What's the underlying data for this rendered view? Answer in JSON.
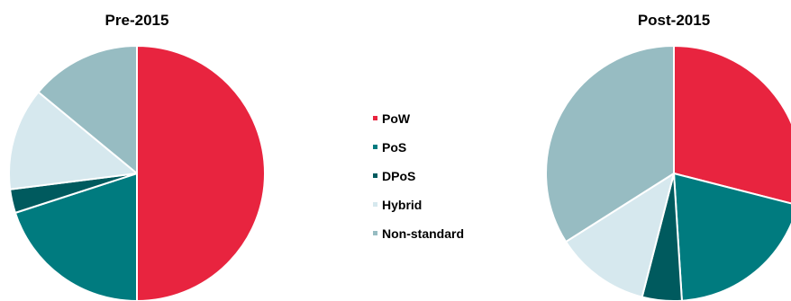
{
  "chart_data": [
    {
      "type": "pie",
      "title": "Pre-2015",
      "categories": [
        "PoW",
        "PoS",
        "DPoS",
        "Hybrid",
        "Non-standard"
      ],
      "values": [
        50,
        20,
        3,
        13,
        14
      ]
    },
    {
      "type": "pie",
      "title": "Post-2015",
      "categories": [
        "PoW",
        "PoS",
        "DPoS",
        "Hybrid",
        "Non-standard"
      ],
      "values": [
        29,
        20,
        5,
        12,
        34
      ]
    }
  ],
  "legend": {
    "placement": "center",
    "items": [
      {
        "label": "PoW",
        "color": "#e8243f"
      },
      {
        "label": "PoS",
        "color": "#007b7f"
      },
      {
        "label": "DPoS",
        "color": "#005a5e"
      },
      {
        "label": "Hybrid",
        "color": "#d6e8ee"
      },
      {
        "label": "Non-standard",
        "color": "#97bcc2"
      }
    ]
  }
}
